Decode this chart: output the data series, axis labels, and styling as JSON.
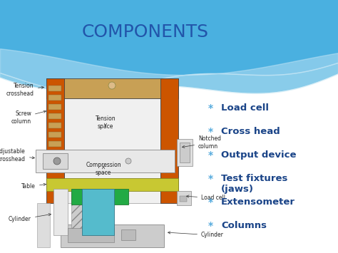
{
  "title": "COMPONENTS",
  "title_color": "#2255aa",
  "title_fontsize": 18,
  "bullet_symbol": "*",
  "bullet_items": [
    "Load cell",
    "Cross head",
    "Output device",
    "Test fixtures\n(jaws)",
    "Extensometer",
    "Columns"
  ],
  "bullet_color": "#1a4488",
  "bullet_star_color": "#55aadd",
  "bullet_fontsize": 9.5,
  "label_fontsize": 5.5,
  "label_color": "#222222",
  "bg_blue": "#4ab0e0",
  "bg_white": "#ffffff",
  "wave_color": "#ffffff",
  "col_orange": "#cc5500",
  "col_tan": "#c8a055",
  "col_yellow": "#c8c832",
  "col_green": "#22aa44",
  "col_gray": "#aaaaaa",
  "col_lightgray": "#dddddd",
  "col_whitebox": "#f0f0f0"
}
